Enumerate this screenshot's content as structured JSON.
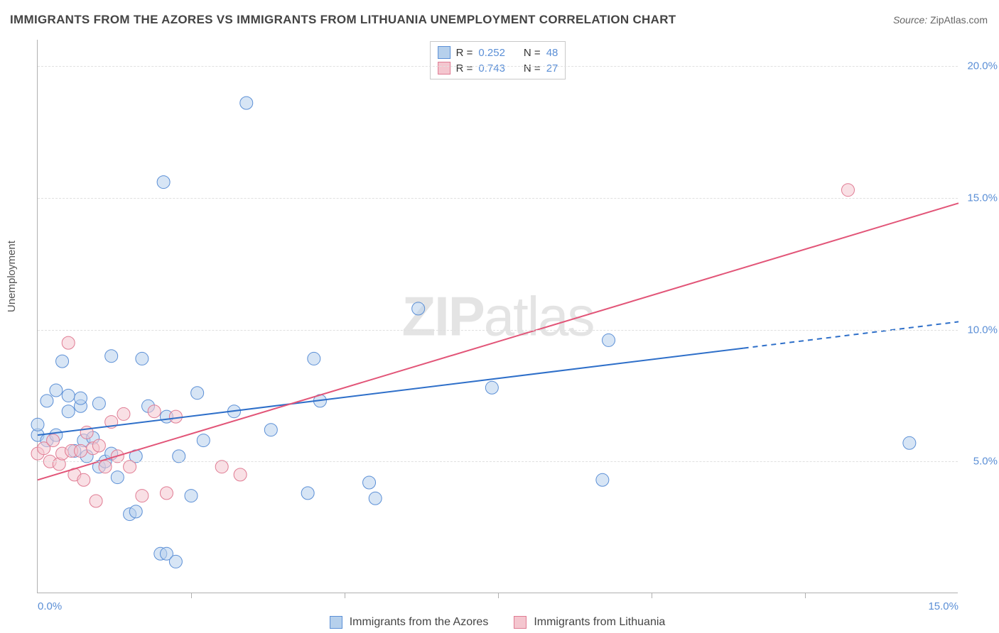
{
  "title": "IMMIGRANTS FROM THE AZORES VS IMMIGRANTS FROM LITHUANIA UNEMPLOYMENT CORRELATION CHART",
  "source_label": "Source:",
  "source_value": "ZipAtlas.com",
  "ylabel": "Unemployment",
  "watermark_bold": "ZIP",
  "watermark_rest": "atlas",
  "chart": {
    "type": "scatter",
    "xlim": [
      0,
      15
    ],
    "ylim": [
      0,
      21
    ],
    "x_tick_labels": {
      "0": "0.0%",
      "15": "15.0%"
    },
    "x_minor_ticks": [
      2.5,
      5.0,
      7.5,
      10.0,
      12.5
    ],
    "y_grid": [
      5,
      10,
      15,
      20
    ],
    "y_tick_labels": {
      "5": "5.0%",
      "10": "10.0%",
      "15": "15.0%",
      "20": "20.0%"
    },
    "background_color": "#ffffff",
    "grid_color": "#e0e0e0",
    "axis_color": "#b0b0b0",
    "tick_label_color": "#5b8fd6",
    "marker_radius": 9,
    "marker_opacity": 0.55,
    "series": [
      {
        "name": "Immigrants from the Azores",
        "color_fill": "#b6d0ec",
        "color_stroke": "#5b8fd6",
        "r_label": "R =",
        "r_value": "0.252",
        "n_label": "N =",
        "n_value": "48",
        "trend": {
          "x1": 0,
          "y1": 6.0,
          "x2": 11.5,
          "y2": 9.3,
          "dash_x2": 15,
          "dash_y2": 10.3,
          "stroke": "#2e6fc9",
          "width": 2
        },
        "points": [
          [
            0.0,
            6.0
          ],
          [
            0.0,
            6.4
          ],
          [
            0.15,
            7.3
          ],
          [
            0.15,
            5.8
          ],
          [
            0.3,
            7.7
          ],
          [
            0.3,
            6.0
          ],
          [
            0.4,
            8.8
          ],
          [
            0.5,
            6.9
          ],
          [
            0.5,
            7.5
          ],
          [
            0.6,
            5.4
          ],
          [
            0.7,
            7.1
          ],
          [
            0.7,
            7.4
          ],
          [
            0.75,
            5.8
          ],
          [
            0.8,
            5.2
          ],
          [
            0.9,
            5.9
          ],
          [
            1.0,
            4.8
          ],
          [
            1.0,
            7.2
          ],
          [
            1.1,
            5.0
          ],
          [
            1.2,
            9.0
          ],
          [
            1.2,
            5.3
          ],
          [
            1.3,
            4.4
          ],
          [
            1.5,
            3.0
          ],
          [
            1.6,
            3.1
          ],
          [
            1.6,
            5.2
          ],
          [
            1.7,
            8.9
          ],
          [
            1.8,
            7.1
          ],
          [
            2.05,
            15.6
          ],
          [
            2.1,
            6.7
          ],
          [
            2.0,
            1.5
          ],
          [
            2.1,
            1.5
          ],
          [
            2.25,
            1.2
          ],
          [
            2.3,
            5.2
          ],
          [
            2.5,
            3.7
          ],
          [
            2.6,
            7.6
          ],
          [
            2.7,
            5.8
          ],
          [
            3.2,
            6.9
          ],
          [
            3.4,
            18.6
          ],
          [
            3.8,
            6.2
          ],
          [
            4.4,
            3.8
          ],
          [
            4.5,
            8.9
          ],
          [
            4.6,
            7.3
          ],
          [
            5.4,
            4.2
          ],
          [
            5.5,
            3.6
          ],
          [
            6.2,
            10.8
          ],
          [
            7.4,
            7.8
          ],
          [
            9.2,
            4.3
          ],
          [
            9.3,
            9.6
          ],
          [
            14.2,
            5.7
          ]
        ]
      },
      {
        "name": "Immigrants from Lithuania",
        "color_fill": "#f4c6cf",
        "color_stroke": "#e07b93",
        "r_label": "R =",
        "r_value": "0.743",
        "n_label": "N =",
        "n_value": "27",
        "trend": {
          "x1": 0,
          "y1": 4.3,
          "x2": 15,
          "y2": 14.8,
          "stroke": "#e25578",
          "width": 2
        },
        "points": [
          [
            0.0,
            5.3
          ],
          [
            0.1,
            5.5
          ],
          [
            0.2,
            5.0
          ],
          [
            0.25,
            5.8
          ],
          [
            0.35,
            4.9
          ],
          [
            0.4,
            5.3
          ],
          [
            0.5,
            9.5
          ],
          [
            0.55,
            5.4
          ],
          [
            0.6,
            4.5
          ],
          [
            0.7,
            5.4
          ],
          [
            0.75,
            4.3
          ],
          [
            0.8,
            6.1
          ],
          [
            0.9,
            5.5
          ],
          [
            0.95,
            3.5
          ],
          [
            1.0,
            5.6
          ],
          [
            1.1,
            4.8
          ],
          [
            1.2,
            6.5
          ],
          [
            1.3,
            5.2
          ],
          [
            1.4,
            6.8
          ],
          [
            1.5,
            4.8
          ],
          [
            1.7,
            3.7
          ],
          [
            1.9,
            6.9
          ],
          [
            2.1,
            3.8
          ],
          [
            2.25,
            6.7
          ],
          [
            3.0,
            4.8
          ],
          [
            3.3,
            4.5
          ],
          [
            13.2,
            15.3
          ]
        ]
      }
    ]
  },
  "colors": {
    "title": "#444444",
    "source": "#666666",
    "ylabel": "#555555"
  }
}
